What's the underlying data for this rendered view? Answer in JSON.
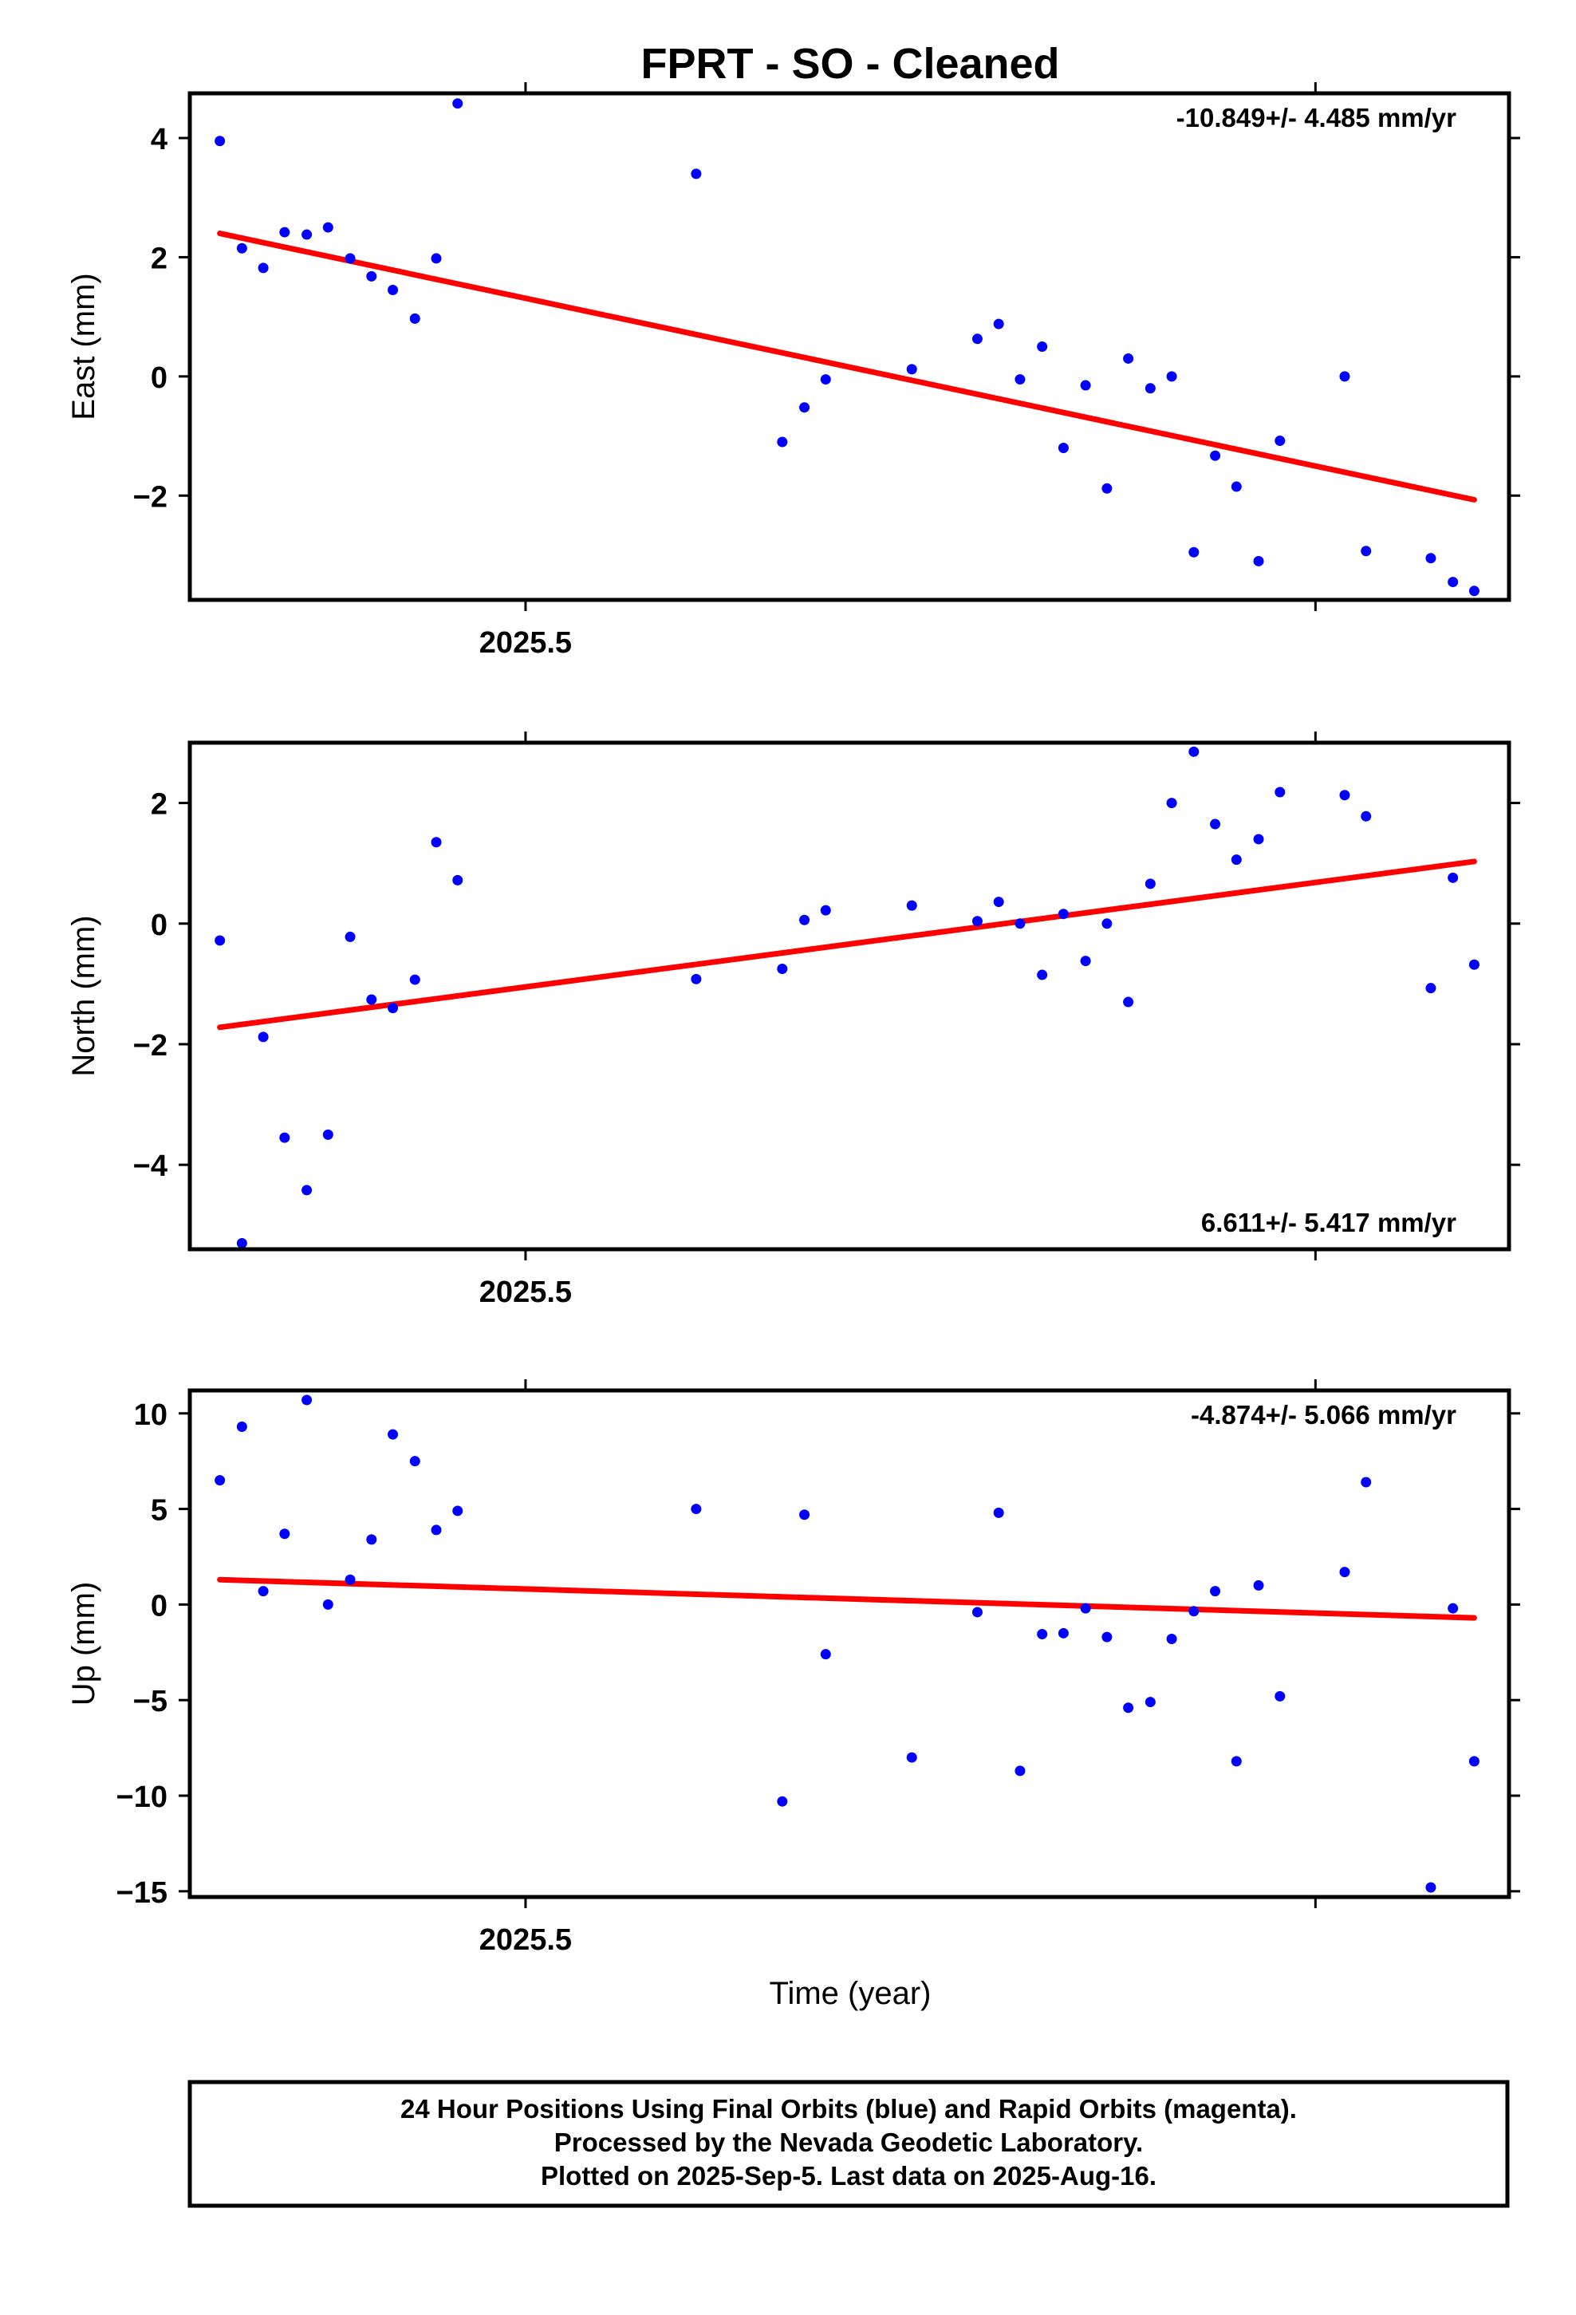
{
  "title": "FPRT  - SO - Cleaned",
  "xlabel": "Time (year)",
  "colors": {
    "final_points": "#0000ff",
    "trend_line": "#ff0000",
    "frame": "#000000"
  },
  "chart_data": [
    {
      "type": "scatter",
      "ylabel": "East (mm)",
      "rate_text": "-10.849+/- 4.485 mm/yr",
      "rate_position": "top-right",
      "ylim": [
        -3.75,
        4.75
      ],
      "yticks": [
        -2,
        0,
        2,
        4
      ],
      "ytick_labels": [
        "−2",
        "0",
        "2",
        "4"
      ],
      "xlim": [
        2025.4575,
        2025.6245
      ],
      "xticks": [
        2025.5,
        2025.6
      ],
      "xtick_labels": [
        "2025.5",
        ""
      ],
      "series": [
        {
          "marker": "dot",
          "x": [
            2025.4613,
            2025.4641,
            2025.4668,
            2025.4695,
            2025.4723,
            2025.475,
            2025.4778,
            2025.4805,
            2025.4832,
            2025.486,
            2025.4887,
            2025.4914,
            2025.5216,
            2025.5325,
            2025.5353,
            2025.538,
            2025.5489,
            2025.5572,
            2025.5599,
            2025.5626,
            2025.5654,
            2025.5681,
            2025.5709,
            2025.5736,
            2025.5763,
            2025.5791,
            2025.5818,
            2025.5846,
            2025.5873,
            2025.59,
            2025.5928,
            2025.5955,
            2025.6037,
            2025.6064,
            2025.6146,
            2025.6174,
            2025.6201
          ],
          "y": [
            3.95,
            2.15,
            1.82,
            2.42,
            2.38,
            2.5,
            1.98,
            1.68,
            1.45,
            0.97,
            1.98,
            4.58,
            3.4,
            -1.1,
            -0.52,
            -0.05,
            0.12,
            0.63,
            0.88,
            -0.05,
            0.5,
            -1.2,
            -0.15,
            -1.88,
            0.3,
            -0.2,
            0.0,
            -2.95,
            -1.33,
            -1.85,
            -3.1,
            -1.08,
            0.0,
            -2.93,
            -3.05,
            -3.45,
            -3.6
          ]
        }
      ],
      "trend": {
        "x": [
          2025.4613,
          2025.6201
        ],
        "y": [
          2.4,
          -2.07
        ]
      }
    },
    {
      "type": "scatter",
      "ylabel": "North (mm)",
      "rate_text": "6.611+/- 5.417 mm/yr",
      "rate_position": "bottom-right",
      "ylim": [
        -5.4,
        3.0
      ],
      "yticks": [
        -4,
        -2,
        0,
        2
      ],
      "ytick_labels": [
        "−4",
        "−2",
        "0",
        "2"
      ],
      "xlim": [
        2025.4575,
        2025.6245
      ],
      "xticks": [
        2025.5,
        2025.6
      ],
      "xtick_labels": [
        "2025.5",
        ""
      ],
      "series": [
        {
          "marker": "dot",
          "x": [
            2025.4613,
            2025.4641,
            2025.4668,
            2025.4695,
            2025.4723,
            2025.475,
            2025.4778,
            2025.4805,
            2025.4832,
            2025.486,
            2025.4887,
            2025.4914,
            2025.5216,
            2025.5325,
            2025.5353,
            2025.538,
            2025.5489,
            2025.5572,
            2025.5599,
            2025.5626,
            2025.5654,
            2025.5681,
            2025.5709,
            2025.5736,
            2025.5763,
            2025.5791,
            2025.5818,
            2025.5846,
            2025.5873,
            2025.59,
            2025.5928,
            2025.5955,
            2025.6037,
            2025.6064,
            2025.6146,
            2025.6174,
            2025.6201
          ],
          "y": [
            -0.28,
            -5.3,
            -1.88,
            -3.55,
            -4.42,
            -3.5,
            -0.22,
            -1.26,
            -1.4,
            -0.93,
            1.35,
            0.72,
            -0.92,
            -0.75,
            0.06,
            0.22,
            0.3,
            0.04,
            0.36,
            0.0,
            -0.85,
            0.16,
            -0.62,
            0.0,
            -1.3,
            0.66,
            2.0,
            2.85,
            1.65,
            1.06,
            1.4,
            2.18,
            2.13,
            1.78,
            -1.07,
            0.76,
            -0.68
          ]
        }
      ],
      "trend": {
        "x": [
          2025.4613,
          2025.6201
        ],
        "y": [
          -1.72,
          1.03
        ]
      }
    },
    {
      "type": "scatter",
      "ylabel": "Up (mm)",
      "rate_text": "-4.874+/- 5.066 mm/yr",
      "rate_position": "top-right",
      "ylim": [
        -15.3,
        11.2
      ],
      "yticks": [
        -15,
        -10,
        -5,
        0,
        5,
        10
      ],
      "ytick_labels": [
        "−15",
        "−10",
        "−5",
        "0",
        "5",
        "10"
      ],
      "xlim": [
        2025.4575,
        2025.6245
      ],
      "xticks": [
        2025.5,
        2025.6
      ],
      "xtick_labels": [
        "2025.5",
        ""
      ],
      "series": [
        {
          "marker": "dot",
          "x": [
            2025.4613,
            2025.4641,
            2025.4668,
            2025.4695,
            2025.4723,
            2025.475,
            2025.4778,
            2025.4805,
            2025.4832,
            2025.486,
            2025.4887,
            2025.4914,
            2025.5216,
            2025.5325,
            2025.5353,
            2025.538,
            2025.5489,
            2025.5572,
            2025.5599,
            2025.5626,
            2025.5654,
            2025.5681,
            2025.5709,
            2025.5736,
            2025.5763,
            2025.5791,
            2025.5818,
            2025.5846,
            2025.5873,
            2025.59,
            2025.5928,
            2025.5955,
            2025.6037,
            2025.6064,
            2025.6146,
            2025.6174,
            2025.6201
          ],
          "y": [
            6.5,
            9.3,
            0.7,
            3.7,
            10.7,
            0.0,
            1.3,
            3.4,
            8.9,
            7.5,
            3.9,
            4.9,
            5.0,
            -10.3,
            4.7,
            -2.6,
            -8.0,
            -0.4,
            4.8,
            -8.7,
            -1.55,
            -1.5,
            -0.2,
            -1.7,
            -5.4,
            -5.1,
            -1.8,
            -0.35,
            0.7,
            -8.2,
            1.0,
            -4.8,
            1.7,
            6.4,
            -14.8,
            -0.2,
            -8.2
          ]
        }
      ],
      "trend": {
        "x": [
          2025.4613,
          2025.6201
        ],
        "y": [
          1.3,
          -0.7
        ]
      }
    }
  ],
  "footer": {
    "line1": "24 Hour Positions Using Final Orbits (blue) and Rapid Orbits (magenta).",
    "line2": "Processed by the Nevada Geodetic Laboratory.",
    "line3": "Plotted on 2025-Sep-5. Last data on 2025-Aug-16."
  }
}
